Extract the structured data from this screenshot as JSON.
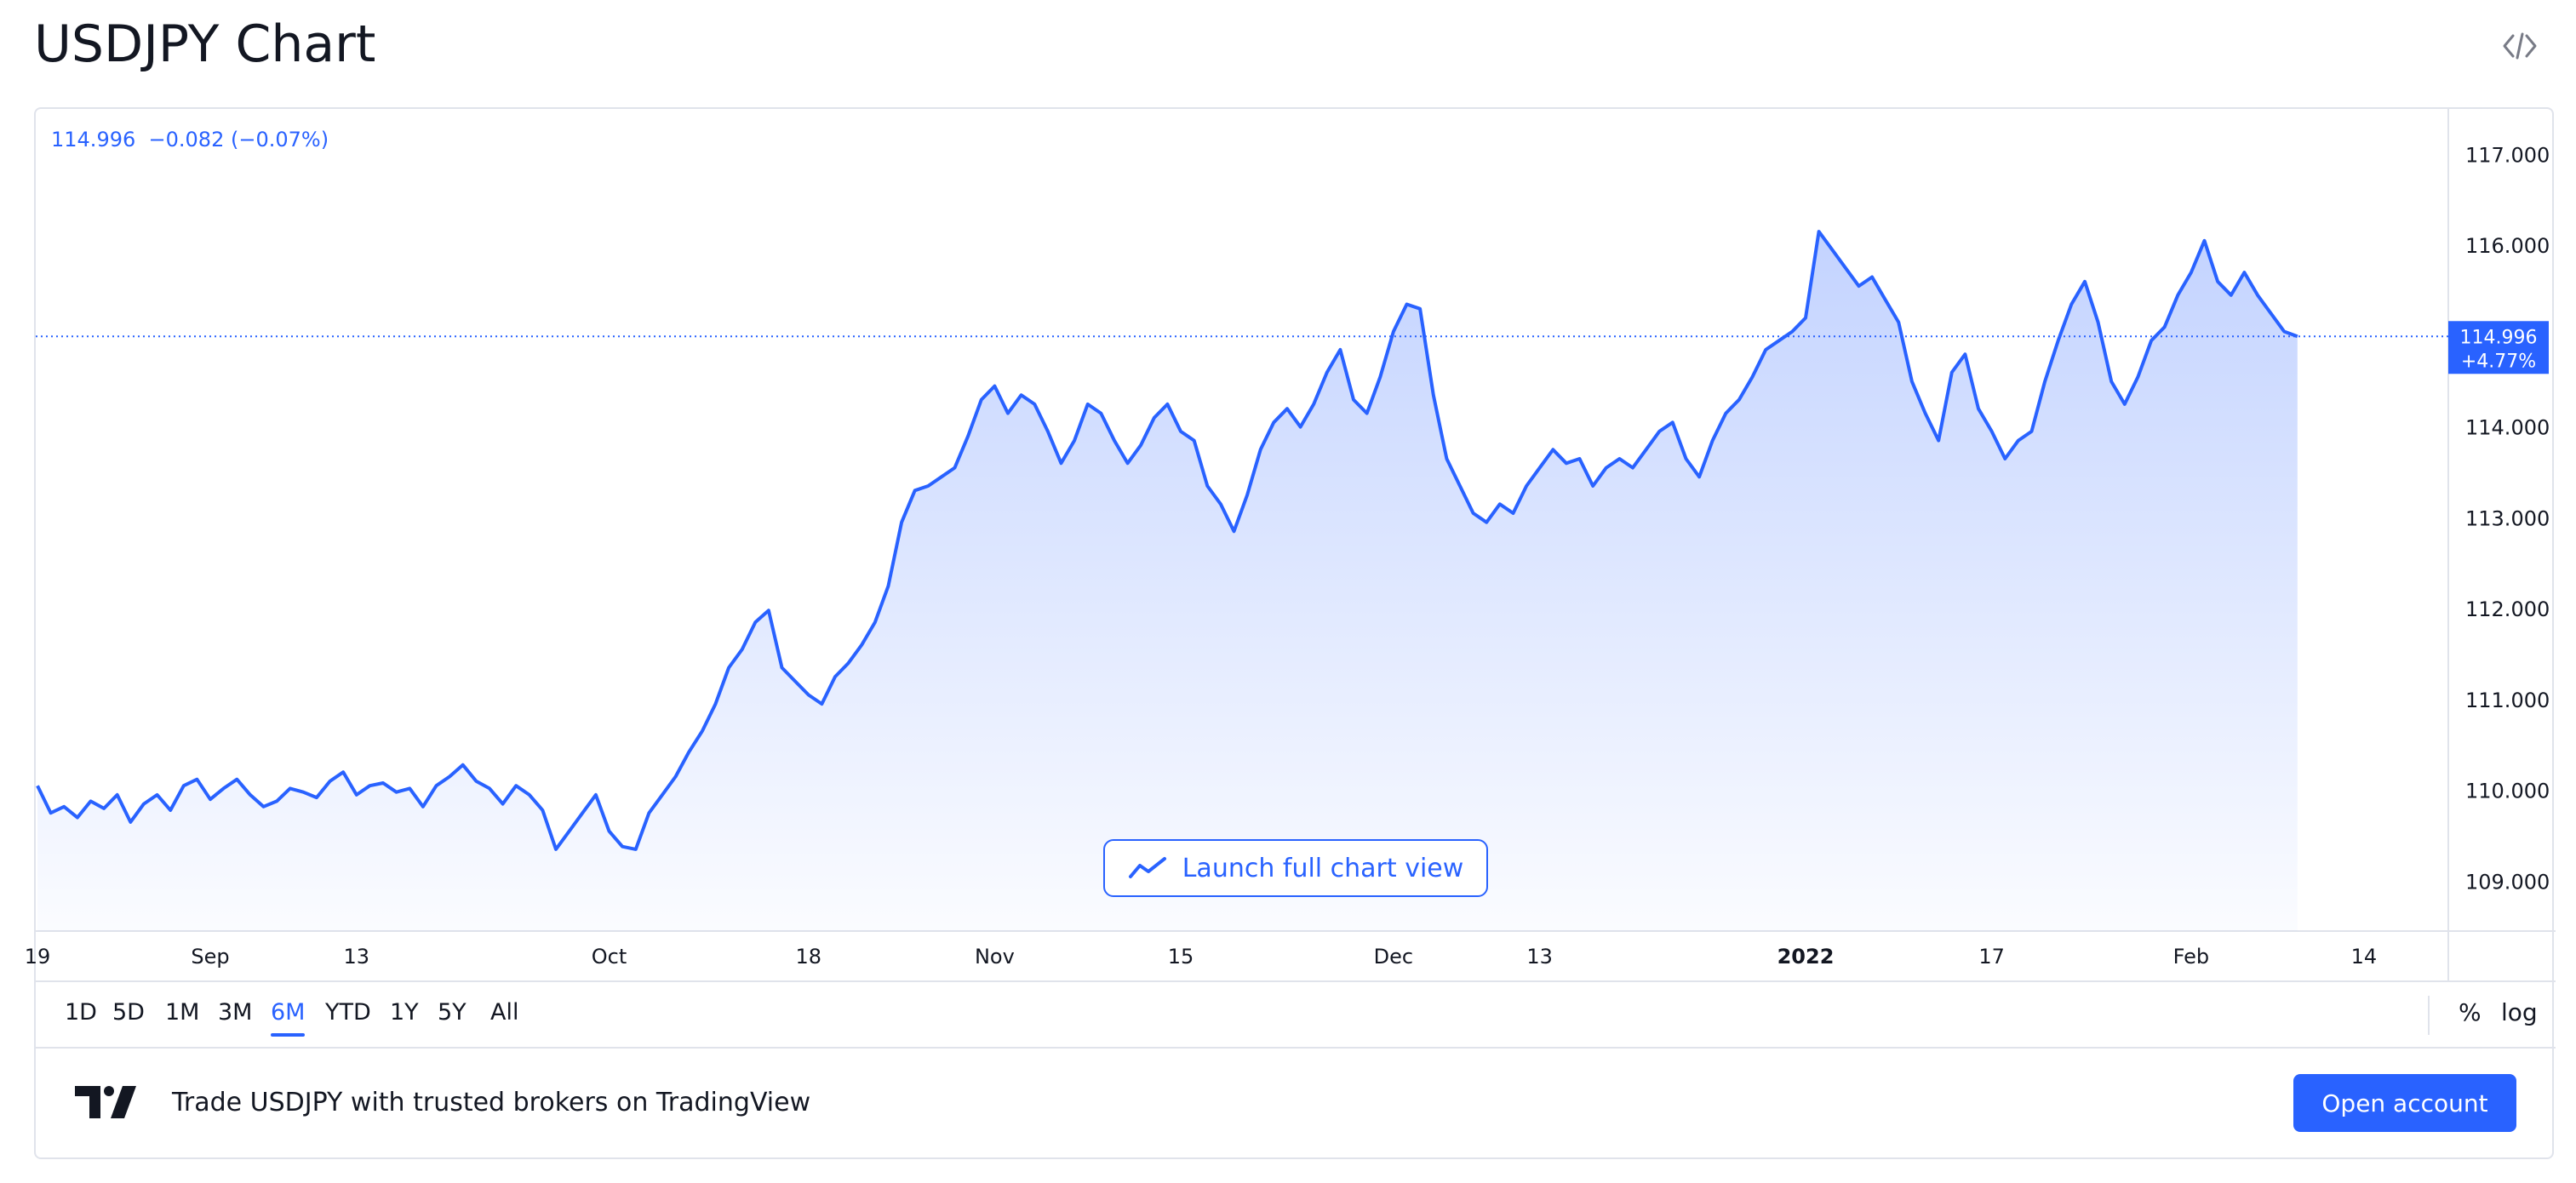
{
  "page": {
    "title": "USDJPY Chart",
    "embed_icon": "code-embed-icon"
  },
  "legend": {
    "price": "114.996",
    "change": "−0.082",
    "change_pct": "(−0.07%)"
  },
  "price_tag": {
    "price": "114.996",
    "pct": "+4.77%"
  },
  "launch_button": {
    "label": "Launch full chart view",
    "icon": "line-chart-icon"
  },
  "ranges": [
    {
      "label": "1D",
      "active": false
    },
    {
      "label": "5D",
      "active": false
    },
    {
      "label": "1M",
      "active": false
    },
    {
      "label": "3M",
      "active": false
    },
    {
      "label": "6M",
      "active": true
    },
    {
      "label": "YTD",
      "active": false
    },
    {
      "label": "1Y",
      "active": false
    },
    {
      "label": "5Y",
      "active": false
    },
    {
      "label": "All",
      "active": false
    }
  ],
  "scale_toggles": {
    "percent": "%",
    "log": "log"
  },
  "footer": {
    "logo": "tradingview-logo",
    "text": "Trade USDJPY with trusted brokers on TradingView",
    "open_account": "Open account"
  },
  "colors": {
    "accent": "#2962ff",
    "text": "#131722",
    "border": "#e0e3eb"
  },
  "chart_data": {
    "type": "area",
    "symbol": "USDJPY",
    "last_price": 114.996,
    "ylim": [
      108.45,
      117.5
    ],
    "yticks": [
      109,
      110,
      111,
      112,
      113,
      114,
      115,
      116,
      117
    ],
    "ytick_labels": [
      "109.000",
      "110.000",
      "111.000",
      "112.000",
      "113.000",
      "114.000",
      "115.000",
      "116.000",
      "117.000"
    ],
    "xtick_labels": [
      {
        "label": "19",
        "pos": 0,
        "bold": false
      },
      {
        "label": "Sep",
        "pos": 13,
        "bold": false
      },
      {
        "label": "13",
        "pos": 24,
        "bold": false
      },
      {
        "label": "Oct",
        "pos": 43,
        "bold": false
      },
      {
        "label": "18",
        "pos": 58,
        "bold": false
      },
      {
        "label": "Nov",
        "pos": 72,
        "bold": false
      },
      {
        "label": "15",
        "pos": 86,
        "bold": false
      },
      {
        "label": "Dec",
        "pos": 102,
        "bold": false
      },
      {
        "label": "13",
        "pos": 113,
        "bold": false
      },
      {
        "label": "2022",
        "pos": 133,
        "bold": true
      },
      {
        "label": "17",
        "pos": 147,
        "bold": false
      },
      {
        "label": "Feb",
        "pos": 162,
        "bold": false
      },
      {
        "label": "14",
        "pos": 175,
        "bold": false
      }
    ],
    "x_count": 181,
    "values": [
      110.05,
      109.75,
      109.82,
      109.7,
      109.88,
      109.8,
      109.95,
      109.65,
      109.85,
      109.95,
      109.78,
      110.05,
      110.12,
      109.9,
      110.02,
      110.12,
      109.95,
      109.82,
      109.88,
      110.02,
      109.98,
      109.92,
      110.1,
      110.2,
      109.95,
      110.05,
      110.08,
      109.98,
      110.02,
      109.82,
      110.05,
      110.15,
      110.28,
      110.1,
      110.02,
      109.85,
      110.05,
      109.95,
      109.78,
      109.35,
      109.55,
      109.75,
      109.95,
      109.55,
      109.38,
      109.35,
      109.75,
      109.95,
      110.15,
      110.42,
      110.65,
      110.95,
      111.35,
      111.55,
      111.85,
      111.98,
      111.35,
      111.2,
      111.05,
      110.95,
      111.25,
      111.4,
      111.6,
      111.85,
      112.25,
      112.95,
      113.3,
      113.35,
      113.45,
      113.55,
      113.9,
      114.3,
      114.45,
      114.15,
      114.35,
      114.25,
      113.95,
      113.6,
      113.85,
      114.25,
      114.15,
      113.85,
      113.6,
      113.8,
      114.1,
      114.25,
      113.95,
      113.85,
      113.35,
      113.15,
      112.85,
      113.25,
      113.75,
      114.05,
      114.2,
      114.0,
      114.25,
      114.6,
      114.85,
      114.3,
      114.15,
      114.55,
      115.05,
      115.35,
      115.3,
      114.35,
      113.65,
      113.35,
      113.05,
      112.95,
      113.15,
      113.05,
      113.35,
      113.55,
      113.75,
      113.6,
      113.65,
      113.35,
      113.55,
      113.65,
      113.55,
      113.75,
      113.95,
      114.05,
      113.65,
      113.45,
      113.85,
      114.15,
      114.3,
      114.55,
      114.85,
      114.95,
      115.05,
      115.2,
      116.15,
      115.95,
      115.75,
      115.55,
      115.65,
      115.4,
      115.15,
      114.5,
      114.15,
      113.85,
      114.6,
      114.8,
      114.2,
      113.95,
      113.65,
      113.85,
      113.95,
      114.5,
      114.95,
      115.35,
      115.6,
      115.15,
      114.5,
      114.25,
      114.55,
      114.95,
      115.1,
      115.45,
      115.7,
      116.05,
      115.6,
      115.45,
      115.7,
      115.45,
      115.25,
      115.05,
      114.996
    ]
  }
}
